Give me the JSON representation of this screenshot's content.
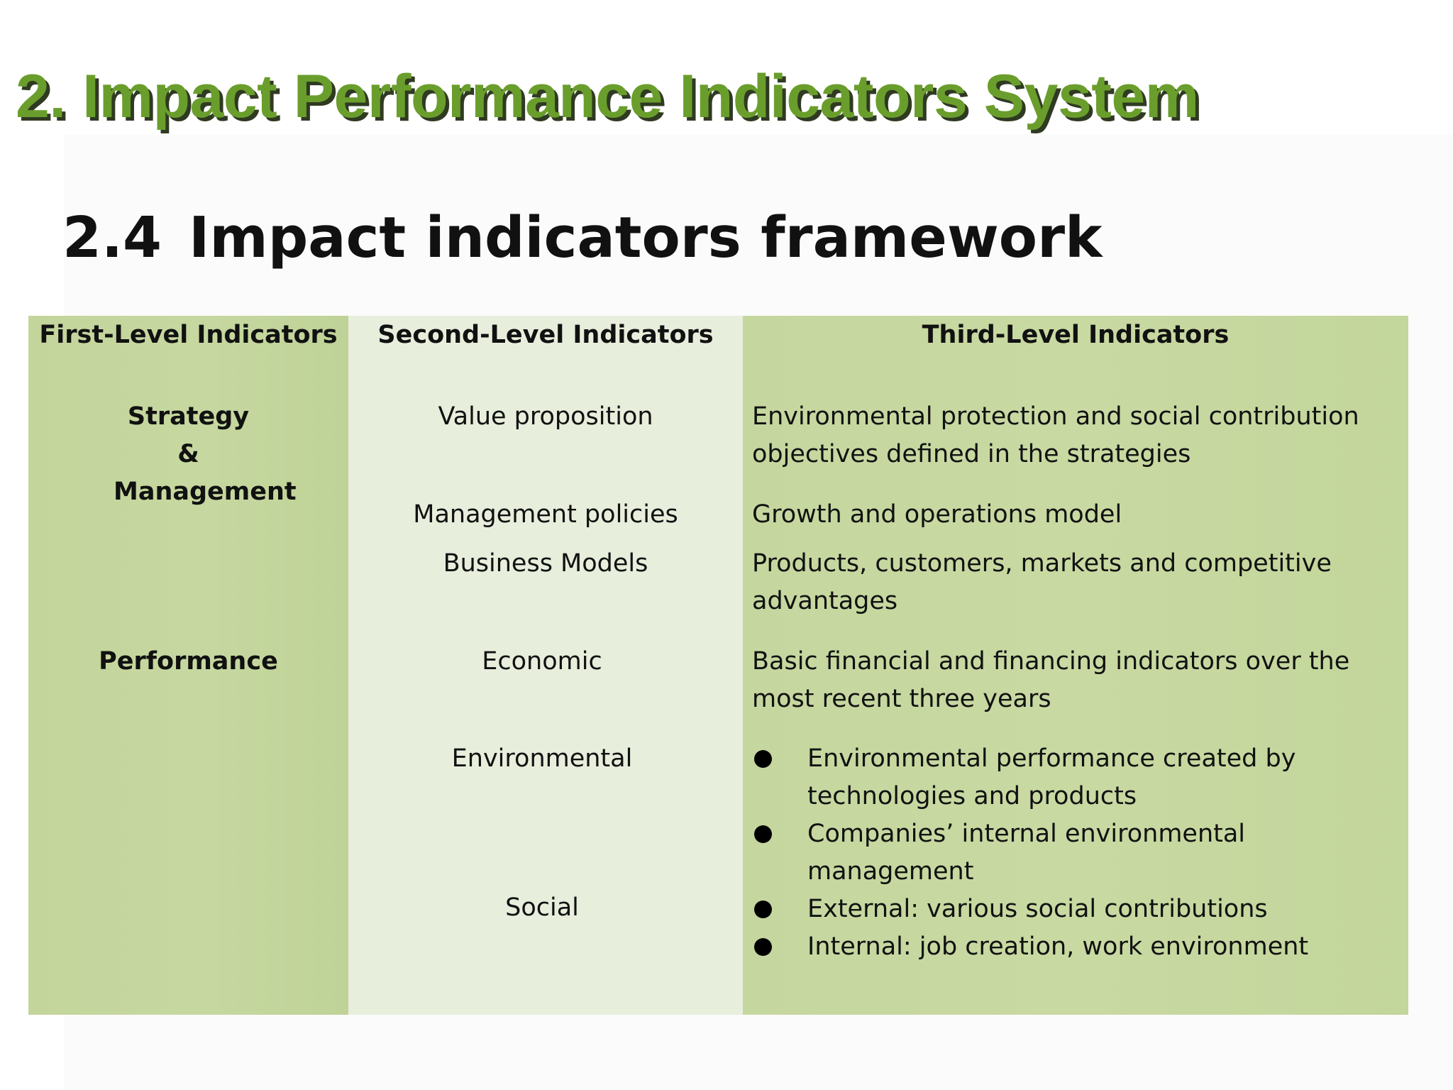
{
  "title": "2. Impact Performance Indicators System",
  "section": {
    "number": "2.4",
    "title": "Impact indicators framework"
  },
  "table": {
    "headers": [
      "First-Level  Indicators",
      "Second-Level Indicators",
      "Third-Level Indicators"
    ],
    "first_level": [
      "Strategy & Management",
      "Performance"
    ],
    "second_level": [
      "Value proposition",
      "Management policies",
      "Business Models",
      "Economic",
      "Environmental",
      "Social"
    ],
    "third_level": [
      "Environmental protection and social contribution objectives defined in the strategies",
      "Growth and operations model",
      "Products, customers, markets and competitive advantages",
      "Basic financial and financing indicators over the most recent three years"
    ],
    "third_level_bullets": [
      "Environmental performance created by technologies and products",
      "Companies’ internal environmental management",
      "External: various social contributions",
      "Internal: job creation, work environment"
    ]
  },
  "colors": {
    "title_green": "#6a9e2c",
    "column_green": "#c5d79f",
    "column_light": "#e8eedc"
  }
}
